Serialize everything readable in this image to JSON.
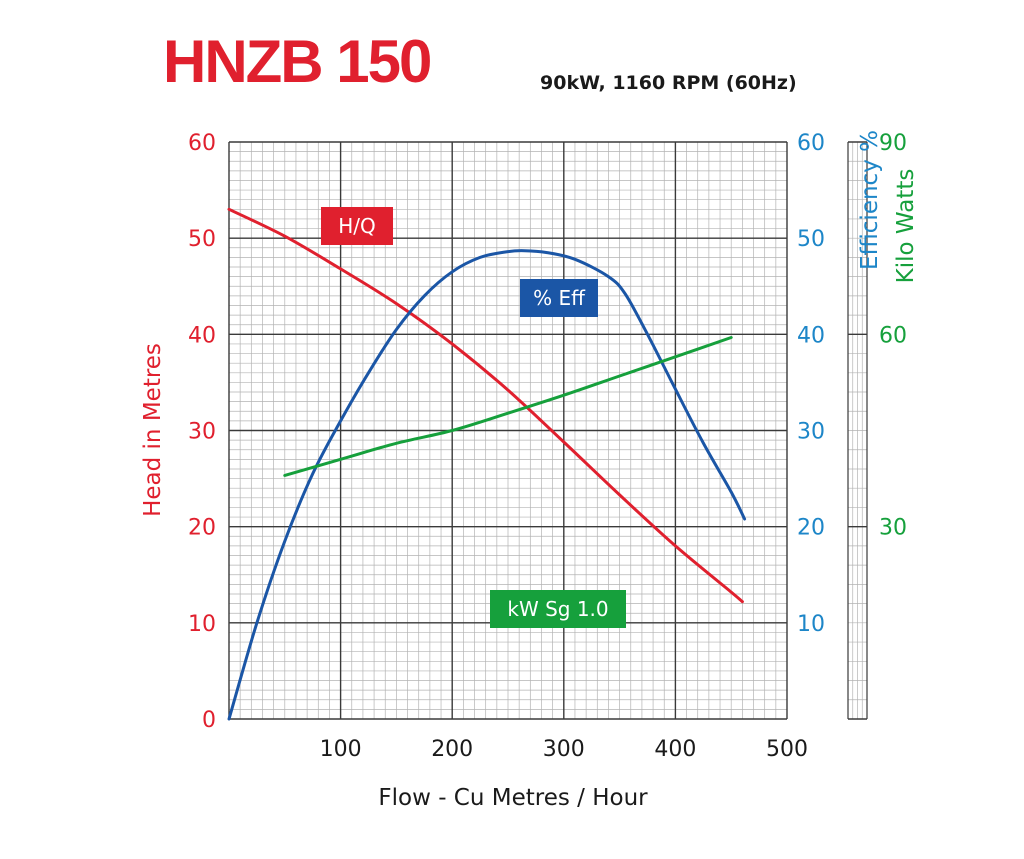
{
  "title": "HNZB 150",
  "subtitle": "90kW, 1160 RPM (60Hz)",
  "colors": {
    "head": "#e0202e",
    "efficiency": "#1b56a6",
    "efficiency_axis": "#1d86c8",
    "power": "#16a03c",
    "grid_major": "#3a3a3a",
    "grid_minor": "#b3b3b3",
    "text": "#1a1a1a"
  },
  "chart_data": {
    "type": "line",
    "xlabel": "Flow - Cu Metres / Hour",
    "xlim": [
      0,
      500
    ],
    "x_ticks": [
      "100",
      "200",
      "300",
      "400",
      "500"
    ],
    "grid": true,
    "axes": {
      "head": {
        "label": "Head in Metres",
        "range": [
          0,
          60
        ],
        "ticks": [
          "0",
          "10",
          "20",
          "30",
          "40",
          "50",
          "60"
        ]
      },
      "efficiency": {
        "label": "Efficiency %",
        "range": [
          0,
          60
        ],
        "ticks": [
          "10",
          "20",
          "30",
          "40",
          "50",
          "60"
        ]
      },
      "power": {
        "label": "Kilo Watts",
        "range": [
          0,
          90
        ],
        "ticks": [
          "30",
          "60",
          "90"
        ]
      }
    },
    "series": [
      {
        "name": "H/Q",
        "axis": "head",
        "x": [
          0,
          50,
          100,
          150,
          200,
          250,
          300,
          350,
          400,
          450,
          460
        ],
        "y": [
          53,
          50.2,
          46.8,
          43.2,
          39,
          34.2,
          28.8,
          23.3,
          18,
          13.2,
          12.2
        ]
      },
      {
        "name": "% Eff",
        "axis": "efficiency",
        "x": [
          0,
          25,
          50,
          75,
          100,
          125,
          150,
          175,
          200,
          225,
          250,
          265,
          285,
          310,
          340,
          355,
          375,
          400,
          425,
          450,
          462
        ],
        "y": [
          0,
          10,
          18.5,
          25.5,
          31,
          36,
          40.5,
          44,
          46.5,
          48,
          48.6,
          48.7,
          48.5,
          47.8,
          46,
          44.2,
          40,
          34.3,
          28.7,
          23.6,
          20.8
        ]
      },
      {
        "name": "kW Sg 1.0",
        "axis": "power",
        "x": [
          50,
          100,
          150,
          200,
          250,
          300,
          350,
          400,
          450
        ],
        "y": [
          38,
          40.5,
          43,
          45,
          47.7,
          50.5,
          53.5,
          56.5,
          59.5
        ]
      }
    ],
    "annotations": [
      {
        "text": "H/Q",
        "series": "H/Q"
      },
      {
        "text": "% Eff",
        "series": "% Eff"
      },
      {
        "text": "kW Sg 1.0",
        "series": "kW Sg 1.0"
      }
    ]
  }
}
